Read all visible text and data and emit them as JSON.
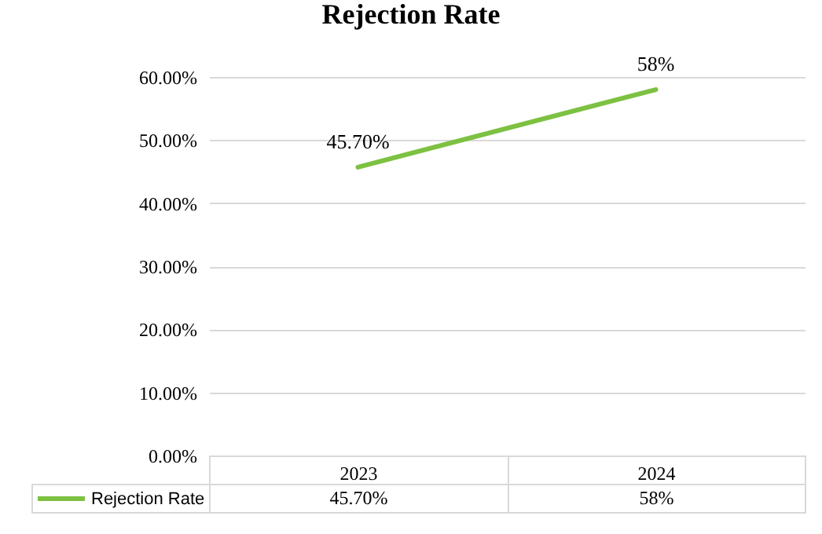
{
  "chart_data": {
    "type": "line",
    "title": "Rejection Rate",
    "categories": [
      "2023",
      "2024"
    ],
    "series": [
      {
        "name": "Rejection Rate",
        "color": "#7dc142",
        "values": [
          45.7,
          58
        ],
        "value_labels": [
          "45.70%",
          "58%"
        ]
      }
    ],
    "ylim": [
      0,
      60
    ],
    "yticks": [
      {
        "value": 0,
        "label": "0.00%"
      },
      {
        "value": 10,
        "label": "10.00%"
      },
      {
        "value": 20,
        "label": "20.00%"
      },
      {
        "value": 30,
        "label": "30.00%"
      },
      {
        "value": 40,
        "label": "40.00%"
      },
      {
        "value": 50,
        "label": "50.00%"
      },
      {
        "value": 60,
        "label": "60.00%"
      }
    ],
    "grid": "y",
    "legend": "bottom left",
    "marker": "none",
    "line_style": "solid"
  }
}
